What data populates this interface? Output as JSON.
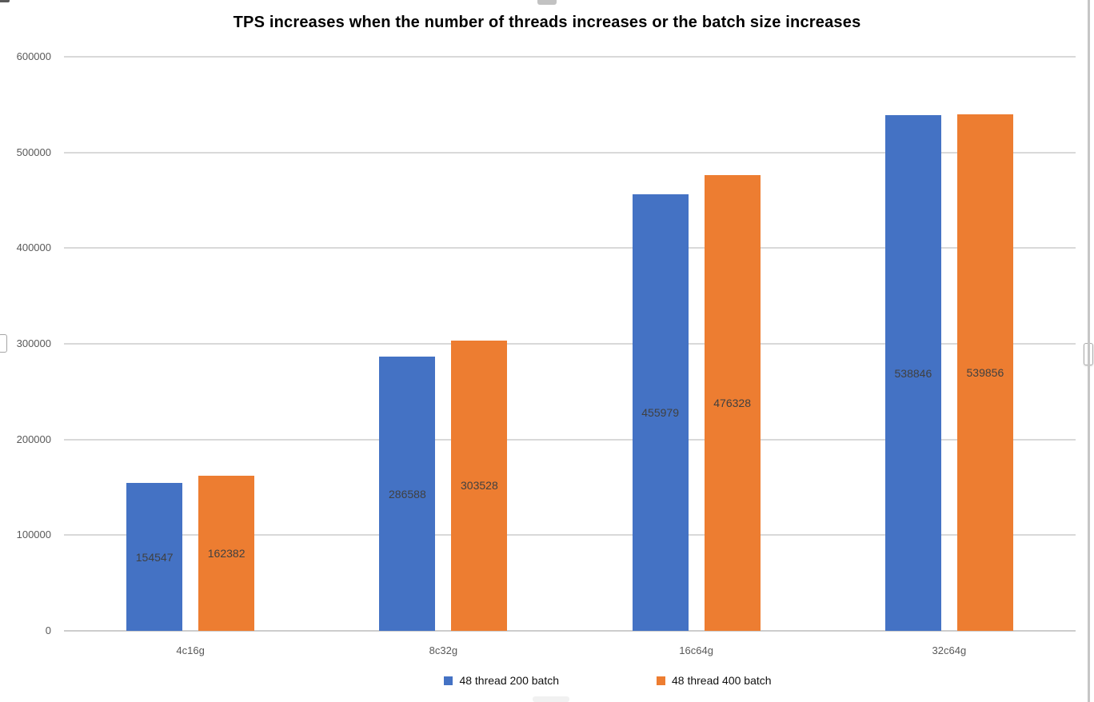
{
  "chart_data": {
    "type": "bar",
    "title": "TPS increases when the number of threads increases or the batch size increases",
    "categories": [
      "4c16g",
      "8c32g",
      "16c64g",
      "32c64g"
    ],
    "series": [
      {
        "name": "48 thread  200 batch",
        "color": "#4472C4",
        "values": [
          154547,
          286588,
          455979,
          538846
        ]
      },
      {
        "name": "48 thread 400 batch",
        "color": "#ED7D31",
        "values": [
          162382,
          303528,
          476328,
          539856
        ]
      }
    ],
    "ylim": [
      0,
      600000
    ],
    "y_tick_step": 100000,
    "y_tick_labels": [
      "0",
      "100000",
      "200000",
      "300000",
      "400000",
      "500000",
      "600000"
    ],
    "grid": true,
    "legend_position": "bottom",
    "data_labels_position": "center",
    "xlabel": "",
    "ylabel": "",
    "colors": {
      "series1": "#4472C4",
      "series2": "#ED7D31",
      "gridline": "#D9D9D9",
      "axis_tick_text": "#595959",
      "data_label_text": "#404040",
      "title_text": "#000000"
    }
  }
}
